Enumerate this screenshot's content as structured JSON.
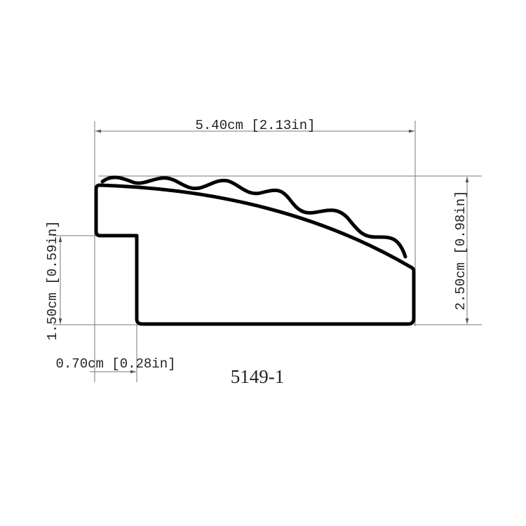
{
  "part_number": "5149-1",
  "dimensions": {
    "overall_width": "5.40cm [2.13in]",
    "overall_height": "2.50cm [0.98in]",
    "rabbet_height": "1.50cm [0.59in]",
    "rabbet_width": "0.70cm [0.28in]"
  }
}
